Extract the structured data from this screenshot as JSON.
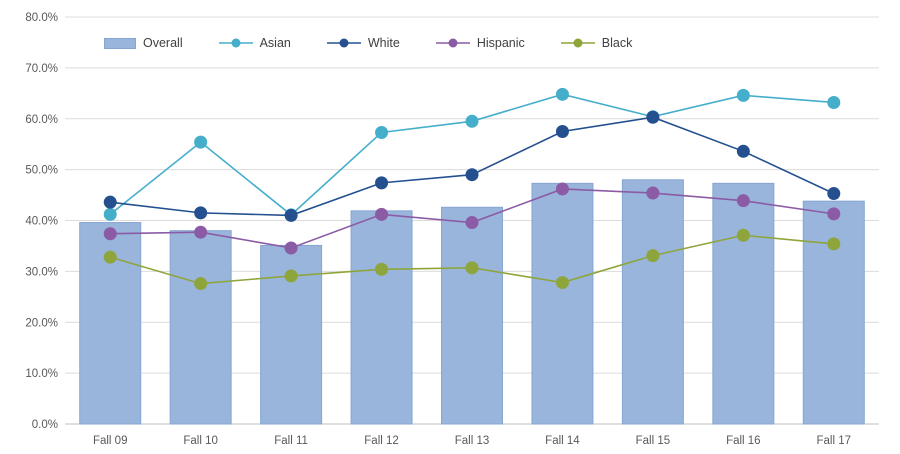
{
  "chart_data": {
    "type": "combo-bar-line",
    "title": "",
    "categories": [
      "Fall 09",
      "Fall 10",
      "Fall 11",
      "Fall 12",
      "Fall 13",
      "Fall 14",
      "Fall 15",
      "Fall 16",
      "Fall 17"
    ],
    "series": [
      {
        "name": "Overall",
        "type": "bar",
        "color": "#99B5DC",
        "border_color": "#86A6D2",
        "values": [
          39.6,
          38.0,
          35.1,
          41.9,
          42.6,
          47.3,
          48.0,
          47.3,
          43.8
        ]
      },
      {
        "name": "Asian",
        "type": "line",
        "color": "#45AECB",
        "values": [
          41.2,
          55.4,
          41.1,
          57.3,
          59.5,
          64.8,
          60.4,
          64.6,
          63.2
        ]
      },
      {
        "name": "White",
        "type": "line",
        "color": "#24508F",
        "values": [
          43.6,
          41.5,
          41.0,
          47.4,
          49.0,
          57.5,
          60.3,
          53.6,
          45.3
        ]
      },
      {
        "name": "Hispanic",
        "type": "line",
        "color": "#8C5BA5",
        "values": [
          37.4,
          37.7,
          34.6,
          41.2,
          39.6,
          46.2,
          45.4,
          43.9,
          41.3
        ]
      },
      {
        "name": "Black",
        "type": "line",
        "color": "#8EA53C",
        "values": [
          32.8,
          27.6,
          29.1,
          30.4,
          30.7,
          27.8,
          33.1,
          37.1,
          35.4
        ]
      }
    ],
    "xlabel": "",
    "ylabel": "",
    "ylim": [
      0,
      80
    ],
    "ytick_step": 10,
    "ytick_labels": [
      "0.0%",
      "10.0%",
      "20.0%",
      "30.0%",
      "40.0%",
      "50.0%",
      "60.0%",
      "70.0%",
      "80.0%"
    ],
    "grid": "horizontal",
    "legend_position": "top"
  },
  "style": {
    "gridline_color": "#DCDCDC",
    "axis_line_color": "#BFBFBF",
    "tick_label_color": "#595959",
    "legend_text_color": "#404040",
    "background": "#FFFFFF"
  }
}
